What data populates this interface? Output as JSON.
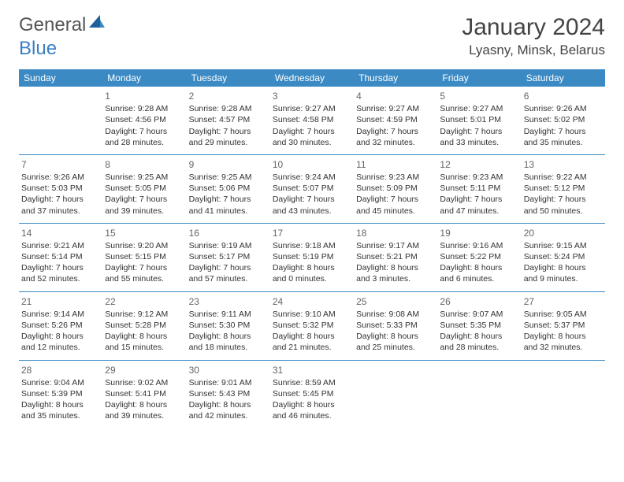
{
  "logo": {
    "text_gray": "General",
    "text_blue": "Blue"
  },
  "title": "January 2024",
  "location": "Lyasny, Minsk, Belarus",
  "colors": {
    "header_bg": "#3b8ac4",
    "header_text": "#ffffff",
    "body_text": "#333333",
    "daynum_text": "#666666",
    "logo_gray": "#555555",
    "logo_blue": "#3b7fc4",
    "row_border": "#3b8ac4"
  },
  "weekdays": [
    "Sunday",
    "Monday",
    "Tuesday",
    "Wednesday",
    "Thursday",
    "Friday",
    "Saturday"
  ],
  "weeks": [
    [
      null,
      {
        "n": "1",
        "sr": "Sunrise: 9:28 AM",
        "ss": "Sunset: 4:56 PM",
        "d1": "Daylight: 7 hours",
        "d2": "and 28 minutes."
      },
      {
        "n": "2",
        "sr": "Sunrise: 9:28 AM",
        "ss": "Sunset: 4:57 PM",
        "d1": "Daylight: 7 hours",
        "d2": "and 29 minutes."
      },
      {
        "n": "3",
        "sr": "Sunrise: 9:27 AM",
        "ss": "Sunset: 4:58 PM",
        "d1": "Daylight: 7 hours",
        "d2": "and 30 minutes."
      },
      {
        "n": "4",
        "sr": "Sunrise: 9:27 AM",
        "ss": "Sunset: 4:59 PM",
        "d1": "Daylight: 7 hours",
        "d2": "and 32 minutes."
      },
      {
        "n": "5",
        "sr": "Sunrise: 9:27 AM",
        "ss": "Sunset: 5:01 PM",
        "d1": "Daylight: 7 hours",
        "d2": "and 33 minutes."
      },
      {
        "n": "6",
        "sr": "Sunrise: 9:26 AM",
        "ss": "Sunset: 5:02 PM",
        "d1": "Daylight: 7 hours",
        "d2": "and 35 minutes."
      }
    ],
    [
      {
        "n": "7",
        "sr": "Sunrise: 9:26 AM",
        "ss": "Sunset: 5:03 PM",
        "d1": "Daylight: 7 hours",
        "d2": "and 37 minutes."
      },
      {
        "n": "8",
        "sr": "Sunrise: 9:25 AM",
        "ss": "Sunset: 5:05 PM",
        "d1": "Daylight: 7 hours",
        "d2": "and 39 minutes."
      },
      {
        "n": "9",
        "sr": "Sunrise: 9:25 AM",
        "ss": "Sunset: 5:06 PM",
        "d1": "Daylight: 7 hours",
        "d2": "and 41 minutes."
      },
      {
        "n": "10",
        "sr": "Sunrise: 9:24 AM",
        "ss": "Sunset: 5:07 PM",
        "d1": "Daylight: 7 hours",
        "d2": "and 43 minutes."
      },
      {
        "n": "11",
        "sr": "Sunrise: 9:23 AM",
        "ss": "Sunset: 5:09 PM",
        "d1": "Daylight: 7 hours",
        "d2": "and 45 minutes."
      },
      {
        "n": "12",
        "sr": "Sunrise: 9:23 AM",
        "ss": "Sunset: 5:11 PM",
        "d1": "Daylight: 7 hours",
        "d2": "and 47 minutes."
      },
      {
        "n": "13",
        "sr": "Sunrise: 9:22 AM",
        "ss": "Sunset: 5:12 PM",
        "d1": "Daylight: 7 hours",
        "d2": "and 50 minutes."
      }
    ],
    [
      {
        "n": "14",
        "sr": "Sunrise: 9:21 AM",
        "ss": "Sunset: 5:14 PM",
        "d1": "Daylight: 7 hours",
        "d2": "and 52 minutes."
      },
      {
        "n": "15",
        "sr": "Sunrise: 9:20 AM",
        "ss": "Sunset: 5:15 PM",
        "d1": "Daylight: 7 hours",
        "d2": "and 55 minutes."
      },
      {
        "n": "16",
        "sr": "Sunrise: 9:19 AM",
        "ss": "Sunset: 5:17 PM",
        "d1": "Daylight: 7 hours",
        "d2": "and 57 minutes."
      },
      {
        "n": "17",
        "sr": "Sunrise: 9:18 AM",
        "ss": "Sunset: 5:19 PM",
        "d1": "Daylight: 8 hours",
        "d2": "and 0 minutes."
      },
      {
        "n": "18",
        "sr": "Sunrise: 9:17 AM",
        "ss": "Sunset: 5:21 PM",
        "d1": "Daylight: 8 hours",
        "d2": "and 3 minutes."
      },
      {
        "n": "19",
        "sr": "Sunrise: 9:16 AM",
        "ss": "Sunset: 5:22 PM",
        "d1": "Daylight: 8 hours",
        "d2": "and 6 minutes."
      },
      {
        "n": "20",
        "sr": "Sunrise: 9:15 AM",
        "ss": "Sunset: 5:24 PM",
        "d1": "Daylight: 8 hours",
        "d2": "and 9 minutes."
      }
    ],
    [
      {
        "n": "21",
        "sr": "Sunrise: 9:14 AM",
        "ss": "Sunset: 5:26 PM",
        "d1": "Daylight: 8 hours",
        "d2": "and 12 minutes."
      },
      {
        "n": "22",
        "sr": "Sunrise: 9:12 AM",
        "ss": "Sunset: 5:28 PM",
        "d1": "Daylight: 8 hours",
        "d2": "and 15 minutes."
      },
      {
        "n": "23",
        "sr": "Sunrise: 9:11 AM",
        "ss": "Sunset: 5:30 PM",
        "d1": "Daylight: 8 hours",
        "d2": "and 18 minutes."
      },
      {
        "n": "24",
        "sr": "Sunrise: 9:10 AM",
        "ss": "Sunset: 5:32 PM",
        "d1": "Daylight: 8 hours",
        "d2": "and 21 minutes."
      },
      {
        "n": "25",
        "sr": "Sunrise: 9:08 AM",
        "ss": "Sunset: 5:33 PM",
        "d1": "Daylight: 8 hours",
        "d2": "and 25 minutes."
      },
      {
        "n": "26",
        "sr": "Sunrise: 9:07 AM",
        "ss": "Sunset: 5:35 PM",
        "d1": "Daylight: 8 hours",
        "d2": "and 28 minutes."
      },
      {
        "n": "27",
        "sr": "Sunrise: 9:05 AM",
        "ss": "Sunset: 5:37 PM",
        "d1": "Daylight: 8 hours",
        "d2": "and 32 minutes."
      }
    ],
    [
      {
        "n": "28",
        "sr": "Sunrise: 9:04 AM",
        "ss": "Sunset: 5:39 PM",
        "d1": "Daylight: 8 hours",
        "d2": "and 35 minutes."
      },
      {
        "n": "29",
        "sr": "Sunrise: 9:02 AM",
        "ss": "Sunset: 5:41 PM",
        "d1": "Daylight: 8 hours",
        "d2": "and 39 minutes."
      },
      {
        "n": "30",
        "sr": "Sunrise: 9:01 AM",
        "ss": "Sunset: 5:43 PM",
        "d1": "Daylight: 8 hours",
        "d2": "and 42 minutes."
      },
      {
        "n": "31",
        "sr": "Sunrise: 8:59 AM",
        "ss": "Sunset: 5:45 PM",
        "d1": "Daylight: 8 hours",
        "d2": "and 46 minutes."
      },
      null,
      null,
      null
    ]
  ]
}
